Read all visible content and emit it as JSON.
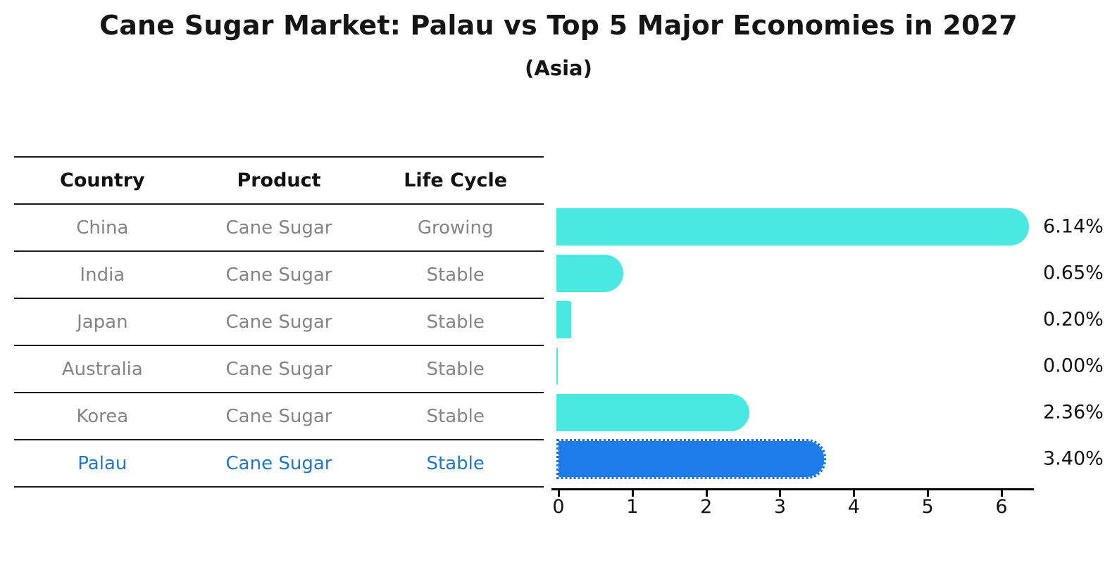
{
  "title": "Cane Sugar Market: Palau vs Top 5 Major Economies in 2027",
  "subtitle": "(Asia)",
  "table": {
    "columns": [
      "Country",
      "Product",
      "Life Cycle"
    ],
    "rows": [
      {
        "country": "China",
        "product": "Cane Sugar",
        "life_cycle": "Growing",
        "highlight": false
      },
      {
        "country": "India",
        "product": "Cane Sugar",
        "life_cycle": "Stable",
        "highlight": false
      },
      {
        "country": "Japan",
        "product": "Cane Sugar",
        "life_cycle": "Stable",
        "highlight": false
      },
      {
        "country": "Australia",
        "product": "Cane Sugar",
        "life_cycle": "Stable",
        "highlight": false
      },
      {
        "country": "Korea",
        "product": "Cane Sugar",
        "life_cycle": "Stable",
        "highlight": false
      },
      {
        "country": "Palau",
        "product": "Cane Sugar",
        "life_cycle": "Stable",
        "highlight": true
      }
    ]
  },
  "chart_data": {
    "type": "bar",
    "orientation": "horizontal",
    "categories": [
      "China",
      "India",
      "Japan",
      "Australia",
      "Korea",
      "Palau"
    ],
    "values": [
      6.14,
      0.65,
      0.2,
      0.0,
      2.36,
      3.4
    ],
    "value_labels": [
      "6.14%",
      "0.65%",
      "0.20%",
      "0.00%",
      "2.36%",
      "3.40%"
    ],
    "xticks": [
      "0",
      "1",
      "2",
      "3",
      "4",
      "5",
      "6"
    ],
    "xlim": [
      0,
      6.5
    ],
    "grid": false,
    "legend": "none",
    "bar_color": "#4be8e2",
    "highlight_index": 5,
    "highlight_bar_color": "#1d7cea",
    "highlight_text_color": "#2077c8",
    "title": "Cane Sugar Market: Palau vs Top 5 Major Economies in 2027",
    "subtitle": "(Asia)"
  }
}
